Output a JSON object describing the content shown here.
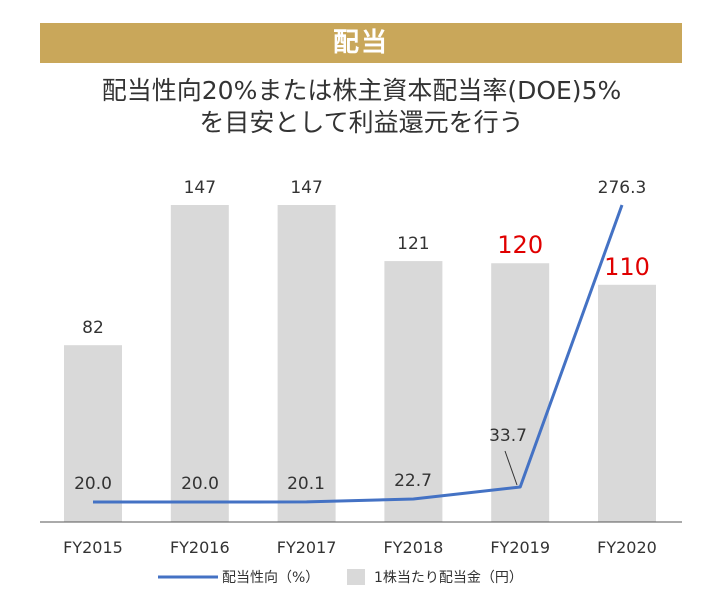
{
  "header": {
    "section_title": "配当",
    "subtitle_line1": "配当性向20%または株主資本配当率(DOE)5%",
    "subtitle_line2": "を目安として利益還元を行う"
  },
  "colors": {
    "banner": "#c9a75a",
    "bar": "#d9d9d9",
    "line": "#4472c4",
    "highlight_label": "#e00000",
    "label": "#333333"
  },
  "chart_data": {
    "type": "bar",
    "categories": [
      "FY2015",
      "FY2016",
      "FY2017",
      "FY2018",
      "FY2019",
      "FY2020"
    ],
    "series": [
      {
        "name": "1株当たり配当金（円）",
        "type": "bar",
        "values": [
          82,
          147,
          147,
          121,
          120,
          110
        ],
        "labels": [
          "82",
          "147",
          "147",
          "121",
          "120",
          "110"
        ],
        "highlight": [
          false,
          false,
          false,
          false,
          true,
          true
        ]
      },
      {
        "name": "配当性向（%）",
        "type": "line",
        "values": [
          20.0,
          20.0,
          20.1,
          22.7,
          33.7,
          276.3
        ],
        "labels": [
          "20.0",
          "20.0",
          "20.1",
          "22.7",
          "33.7",
          "276.3"
        ]
      }
    ],
    "legend_position": "bottom",
    "grid": false
  }
}
